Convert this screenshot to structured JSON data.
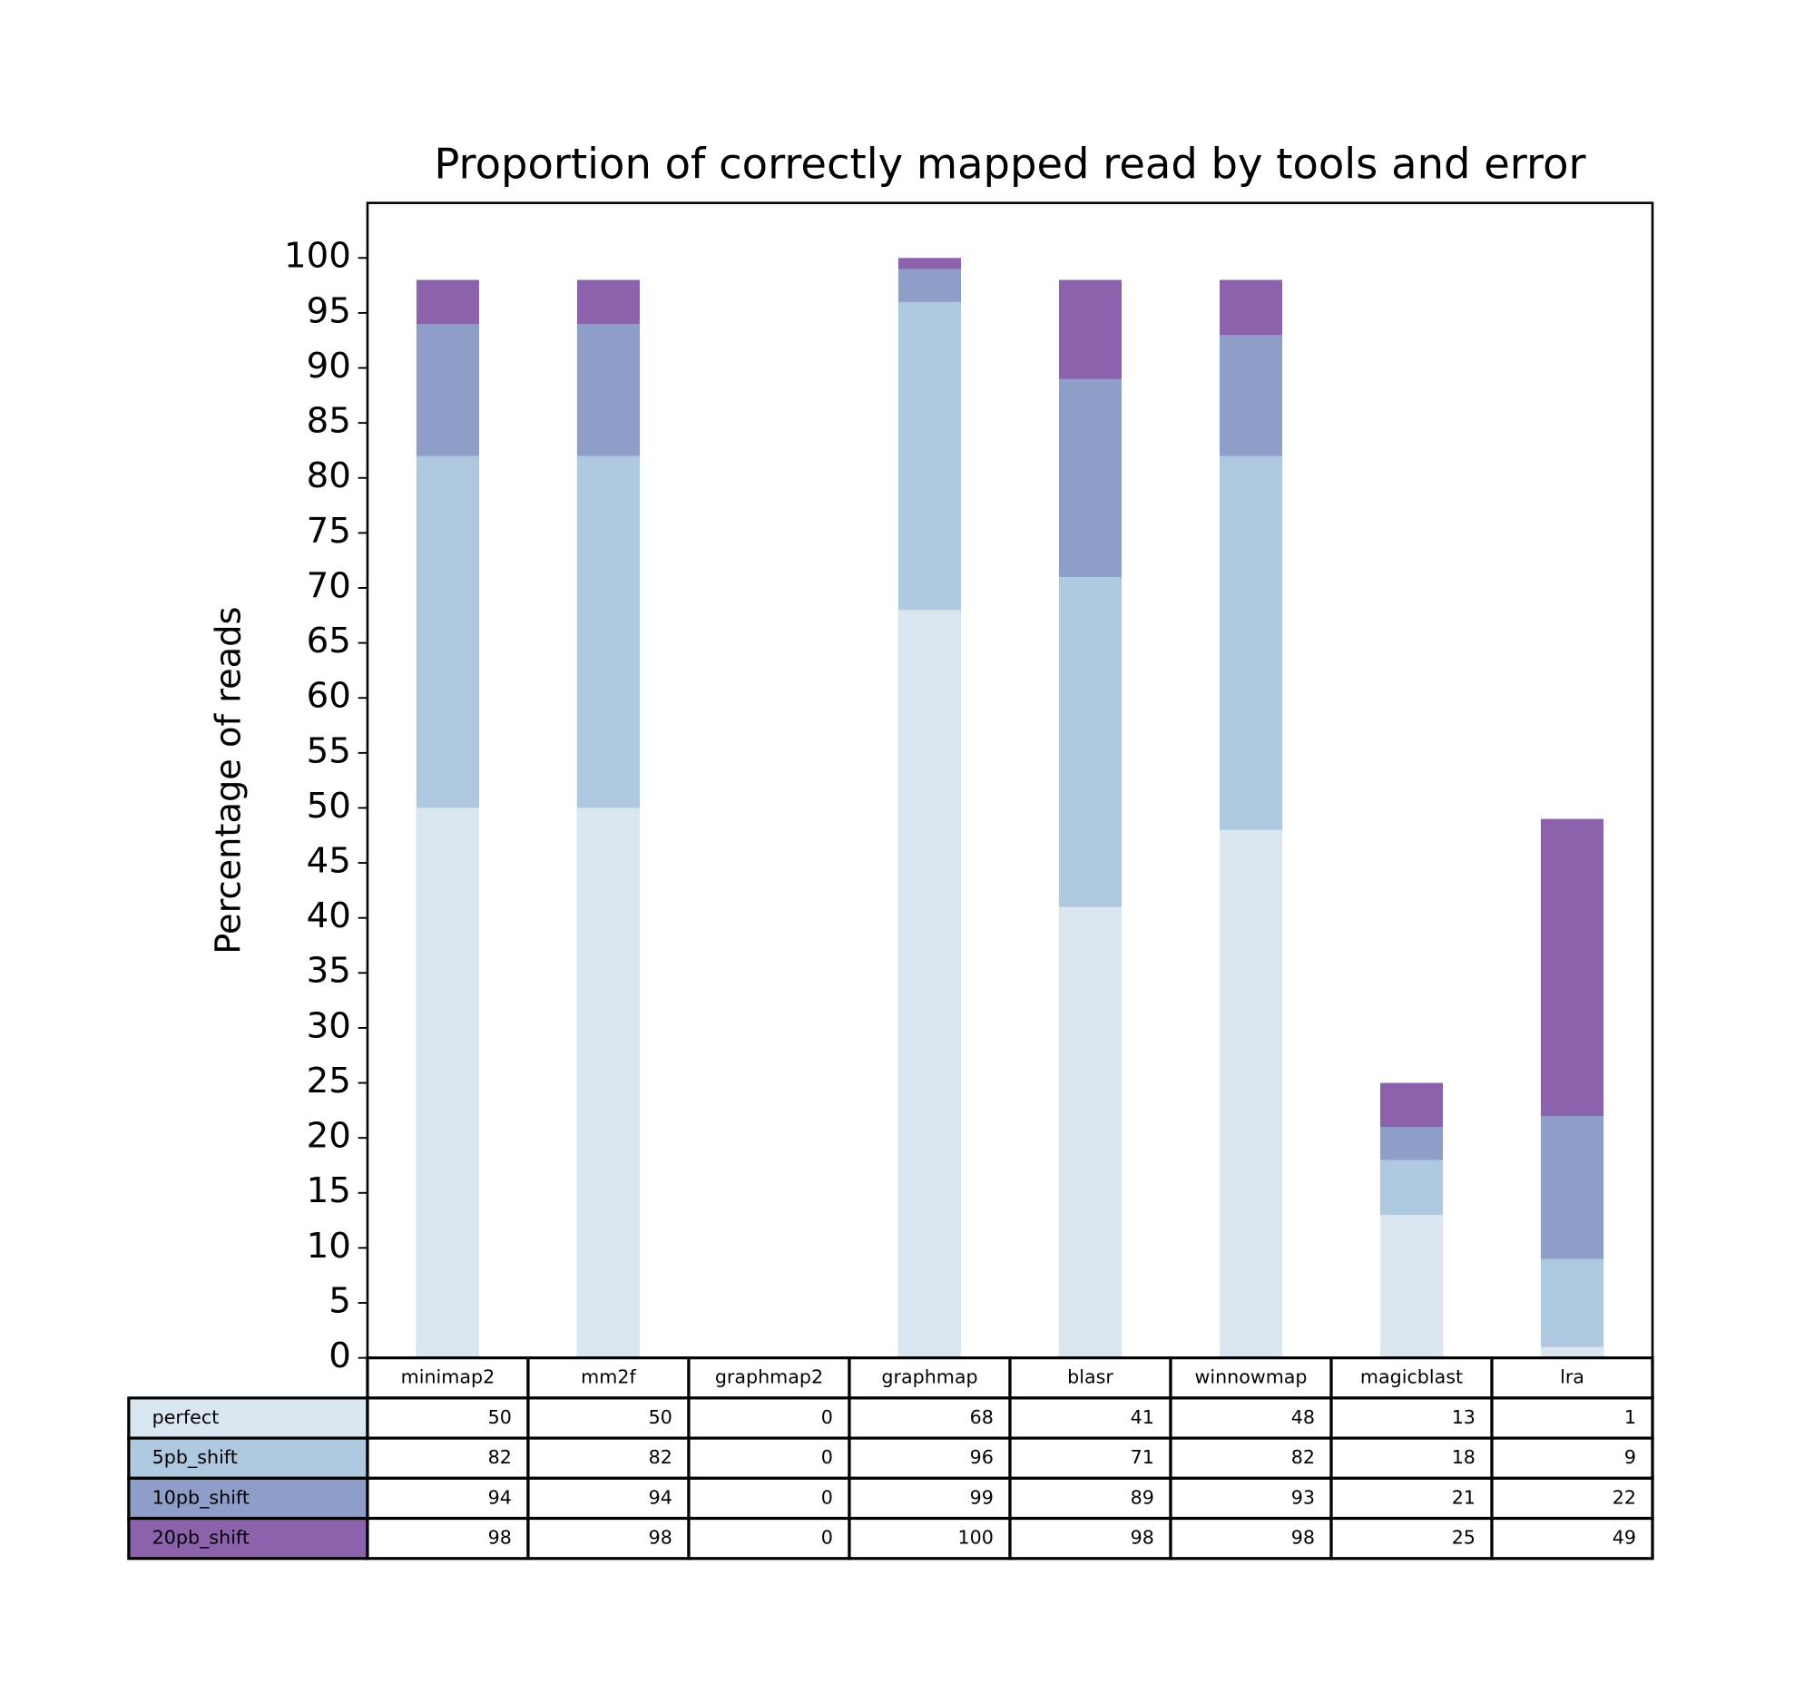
{
  "chart_data": {
    "type": "bar",
    "title": "Proportion of correctly mapped read by tools and error",
    "y_label": "Percentage of reads",
    "categories": [
      "minimap2",
      "mm2f",
      "graphmap2",
      "graphmap",
      "blasr",
      "winnowmap",
      "magicblast",
      "lra"
    ],
    "series": [
      {
        "name": "perfect",
        "color": "#dae6f0",
        "values": [
          50,
          50,
          0,
          68,
          41,
          48,
          13,
          1
        ]
      },
      {
        "name": "5pb_shift",
        "color": "#aec8e0",
        "values": [
          82,
          82,
          0,
          96,
          71,
          82,
          18,
          9
        ]
      },
      {
        "name": "10pb_shift",
        "color": "#8f9dc9",
        "values": [
          94,
          94,
          0,
          99,
          89,
          93,
          21,
          22
        ]
      },
      {
        "name": "20pb_shift",
        "color": "#8c62ad",
        "values": [
          98,
          98,
          0,
          100,
          98,
          98,
          25,
          49
        ]
      }
    ],
    "ylim": [
      0,
      105
    ],
    "yticks": [
      0,
      5,
      10,
      15,
      20,
      25,
      30,
      35,
      40,
      45,
      50,
      55,
      60,
      65,
      70,
      75,
      80,
      85,
      90,
      95,
      100
    ],
    "grid": false
  }
}
